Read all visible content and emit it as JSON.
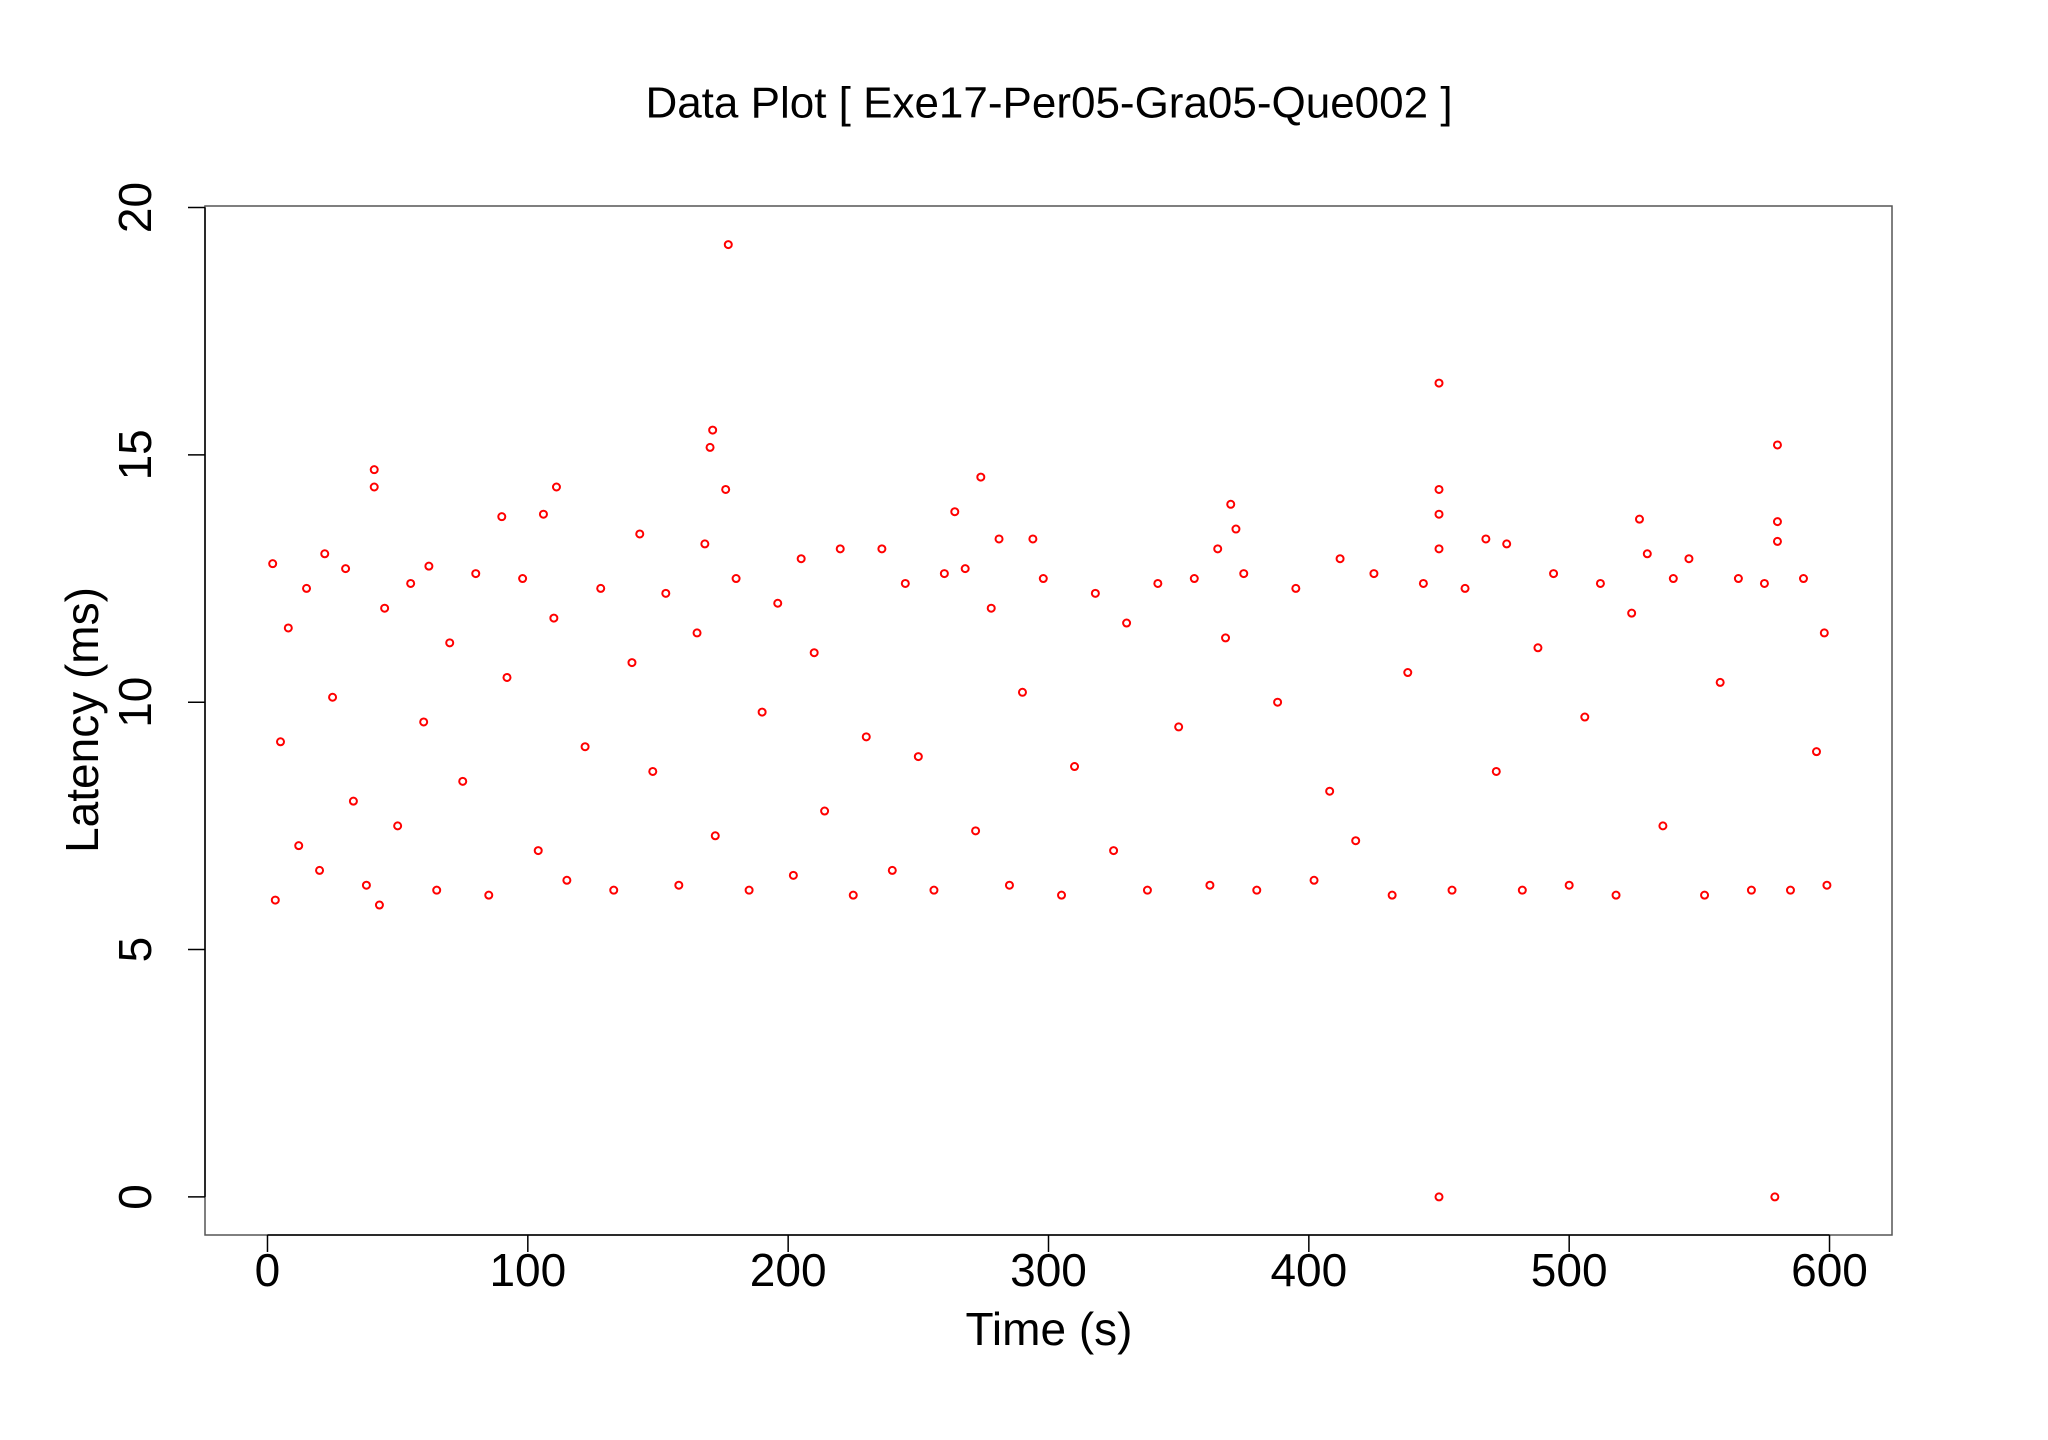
{
  "chart_data": {
    "type": "scatter",
    "title": "Data Plot [ Exe17-Per05-Gra05-Que002 ]",
    "x_label": "Time (s)",
    "y_label": "Latency (ms)",
    "xlim": [
      -24,
      624
    ],
    "ylim": [
      -0.77,
      20.03
    ],
    "xticks": [
      0,
      100,
      200,
      300,
      400,
      500,
      600
    ],
    "yticks": [
      0,
      5,
      10,
      15,
      20
    ],
    "grid": false,
    "series": [
      {
        "color": "#ff0000",
        "x": [
          2,
          3,
          5,
          8,
          12,
          15,
          20,
          22,
          25,
          30,
          33,
          38,
          45,
          50,
          55,
          60,
          62,
          65,
          70,
          75,
          80,
          85,
          92,
          98,
          104,
          110,
          115,
          122,
          128,
          133,
          140,
          148,
          153,
          158,
          165,
          168,
          172,
          180,
          185,
          190,
          196,
          202,
          205,
          210,
          214,
          220,
          225,
          230,
          236,
          240,
          245,
          250,
          256,
          260,
          268,
          272,
          278,
          285,
          290,
          298,
          305,
          310,
          318,
          325,
          330,
          338,
          342,
          350,
          356,
          362,
          368,
          375,
          380,
          388,
          395,
          402,
          408,
          412,
          418,
          425,
          432,
          438,
          444,
          455,
          460,
          468,
          472,
          476,
          482,
          488,
          494,
          500,
          506,
          512,
          518,
          524,
          530,
          536,
          540,
          546,
          552,
          558,
          565,
          570,
          575,
          585,
          590,
          595,
          598,
          599,
          41,
          41,
          171,
          170,
          176,
          177,
          450,
          450,
          450,
          450,
          450,
          579,
          580,
          580,
          580,
          274,
          264,
          370,
          372,
          90,
          106,
          111,
          143,
          527,
          365,
          294,
          281,
          43
        ],
        "values": [
          12.8,
          6.0,
          9.2,
          11.5,
          7.1,
          12.3,
          6.6,
          13.0,
          10.1,
          12.7,
          8.0,
          6.3,
          11.9,
          7.5,
          12.4,
          9.6,
          12.75,
          6.2,
          11.2,
          8.4,
          12.6,
          6.1,
          10.5,
          12.5,
          7.0,
          11.7,
          6.4,
          9.1,
          12.3,
          6.2,
          10.8,
          8.6,
          12.2,
          6.3,
          11.4,
          13.2,
          7.3,
          12.5,
          6.2,
          9.8,
          12.0,
          6.5,
          12.9,
          11.0,
          7.8,
          13.1,
          6.1,
          9.3,
          13.1,
          6.6,
          12.4,
          8.9,
          6.2,
          12.6,
          12.7,
          7.4,
          11.9,
          6.3,
          10.2,
          12.5,
          6.1,
          8.7,
          12.2,
          7.0,
          11.6,
          6.2,
          12.4,
          9.5,
          12.5,
          6.3,
          11.3,
          12.6,
          6.2,
          10.0,
          12.3,
          6.4,
          8.2,
          12.9,
          7.2,
          12.6,
          6.1,
          10.6,
          12.4,
          6.2,
          12.3,
          13.3,
          8.6,
          13.2,
          6.2,
          11.1,
          12.6,
          6.3,
          9.7,
          12.4,
          6.1,
          11.8,
          13.0,
          7.5,
          12.5,
          12.9,
          6.1,
          10.4,
          12.5,
          6.2,
          12.4,
          6.2,
          12.5,
          9.0,
          11.4,
          6.3,
          14.7,
          14.35,
          15.5,
          15.15,
          14.3,
          19.25,
          16.45,
          14.3,
          13.8,
          13.1,
          0,
          0,
          15.2,
          13.65,
          13.25,
          14.55,
          13.85,
          14.0,
          13.5,
          13.75,
          13.8,
          14.35,
          13.4,
          13.7,
          13.1,
          13.3,
          13.3,
          5.9
        ]
      }
    ]
  }
}
